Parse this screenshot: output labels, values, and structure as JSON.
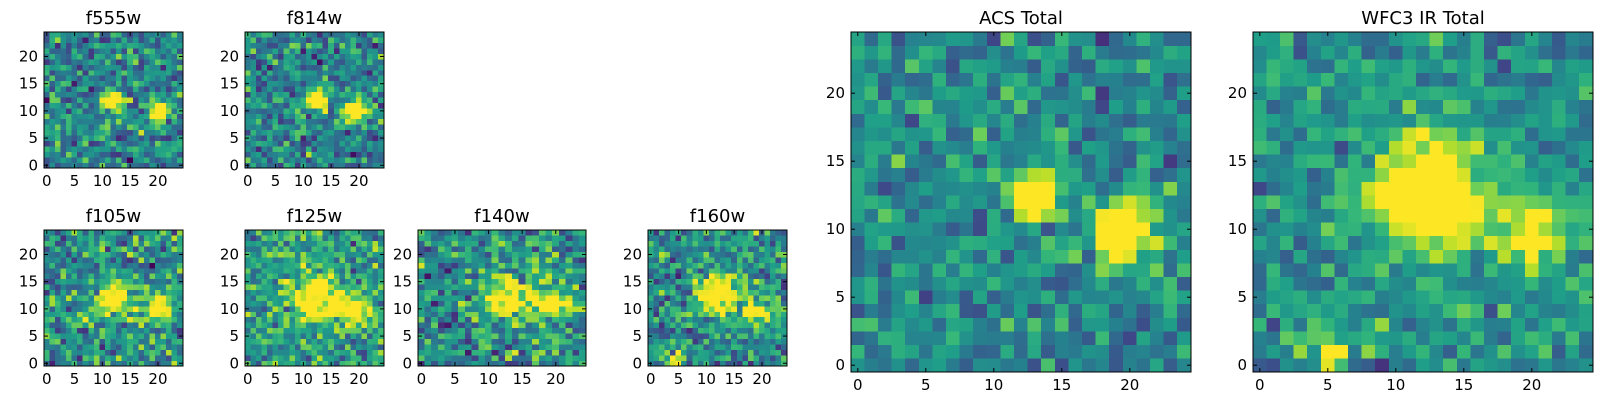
{
  "chart_data": [
    {
      "type": "heatmap",
      "title": "f555w",
      "xlim": [
        0,
        25
      ],
      "ylim": [
        0,
        25
      ],
      "xticks": [
        0,
        5,
        10,
        15,
        20
      ],
      "yticks": [
        0,
        5,
        10,
        15,
        20
      ],
      "sources": [
        {
          "x": 12,
          "y": 12,
          "amp": 1.0,
          "sigma": 1.2
        },
        {
          "x": 20,
          "y": 10,
          "amp": 0.9,
          "sigma": 1.4
        }
      ],
      "noise": 0.42,
      "base": 0.45,
      "seed": 11
    },
    {
      "type": "heatmap",
      "title": "f814w",
      "xlim": [
        0,
        25
      ],
      "ylim": [
        0,
        25
      ],
      "xticks": [
        0,
        5,
        10,
        15,
        20
      ],
      "yticks": [
        0,
        5,
        10,
        15,
        20
      ],
      "sources": [
        {
          "x": 12.5,
          "y": 12,
          "amp": 1.0,
          "sigma": 1.3
        },
        {
          "x": 19.5,
          "y": 10,
          "amp": 0.85,
          "sigma": 1.5
        }
      ],
      "noise": 0.4,
      "base": 0.45,
      "seed": 23
    },
    {
      "type": "heatmap",
      "title": "f105w",
      "xlim": [
        0,
        25
      ],
      "ylim": [
        0,
        25
      ],
      "xticks": [
        0,
        5,
        10,
        15,
        20
      ],
      "yticks": [
        0,
        5,
        10,
        15,
        20
      ],
      "sources": [
        {
          "x": 12,
          "y": 12,
          "amp": 0.7,
          "sigma": 2.2
        },
        {
          "x": 20,
          "y": 10,
          "amp": 0.6,
          "sigma": 2.0
        }
      ],
      "noise": 0.45,
      "base": 0.5,
      "seed": 37
    },
    {
      "type": "heatmap",
      "title": "f125w",
      "xlim": [
        0,
        25
      ],
      "ylim": [
        0,
        25
      ],
      "xticks": [
        0,
        5,
        10,
        15,
        20
      ],
      "yticks": [
        0,
        5,
        10,
        15,
        20
      ],
      "sources": [
        {
          "x": 12,
          "y": 12,
          "amp": 0.8,
          "sigma": 2.6
        },
        {
          "x": 19,
          "y": 10,
          "amp": 0.55,
          "sigma": 2.3
        }
      ],
      "noise": 0.4,
      "base": 0.55,
      "seed": 41
    },
    {
      "type": "heatmap",
      "title": "f140w",
      "xlim": [
        0,
        25
      ],
      "ylim": [
        0,
        25
      ],
      "xticks": [
        0,
        5,
        10,
        15,
        20
      ],
      "yticks": [
        0,
        5,
        10,
        15,
        20
      ],
      "sources": [
        {
          "x": 13,
          "y": 12,
          "amp": 0.75,
          "sigma": 2.4
        },
        {
          "x": 20,
          "y": 11,
          "amp": 0.6,
          "sigma": 2.0
        }
      ],
      "noise": 0.45,
      "base": 0.5,
      "seed": 53
    },
    {
      "type": "heatmap",
      "title": "f160w",
      "xlim": [
        0,
        25
      ],
      "ylim": [
        0,
        25
      ],
      "xticks": [
        0,
        5,
        10,
        15,
        20
      ],
      "yticks": [
        0,
        5,
        10,
        15,
        20
      ],
      "sources": [
        {
          "x": 12,
          "y": 13,
          "amp": 0.85,
          "sigma": 2.5
        },
        {
          "x": 20,
          "y": 10,
          "amp": 0.5,
          "sigma": 2.0
        },
        {
          "x": 4,
          "y": 0,
          "amp": 0.6,
          "sigma": 1.0
        }
      ],
      "noise": 0.42,
      "base": 0.5,
      "seed": 67
    },
    {
      "type": "heatmap",
      "title": "ACS Total",
      "xlim": [
        0,
        25
      ],
      "ylim": [
        0,
        25
      ],
      "xticks": [
        0,
        5,
        10,
        15,
        20
      ],
      "yticks": [
        0,
        5,
        10,
        15,
        20
      ],
      "sources": [
        {
          "x": 13,
          "y": 12.5,
          "amp": 1.1,
          "sigma": 1.1
        },
        {
          "x": 19.5,
          "y": 9.8,
          "amp": 0.95,
          "sigma": 1.5
        }
      ],
      "noise": 0.32,
      "base": 0.48,
      "seed": 79
    },
    {
      "type": "heatmap",
      "title": "WFC3 IR Total",
      "xlim": [
        0,
        25
      ],
      "ylim": [
        0,
        25
      ],
      "xticks": [
        0,
        5,
        10,
        15,
        20
      ],
      "yticks": [
        0,
        5,
        10,
        15,
        20
      ],
      "sources": [
        {
          "x": 12.5,
          "y": 12.5,
          "amp": 1.0,
          "sigma": 2.6
        },
        {
          "x": 20,
          "y": 10,
          "amp": 0.65,
          "sigma": 1.8
        },
        {
          "x": 5,
          "y": 1,
          "amp": 0.6,
          "sigma": 0.9
        }
      ],
      "noise": 0.3,
      "base": 0.5,
      "seed": 97
    }
  ]
}
